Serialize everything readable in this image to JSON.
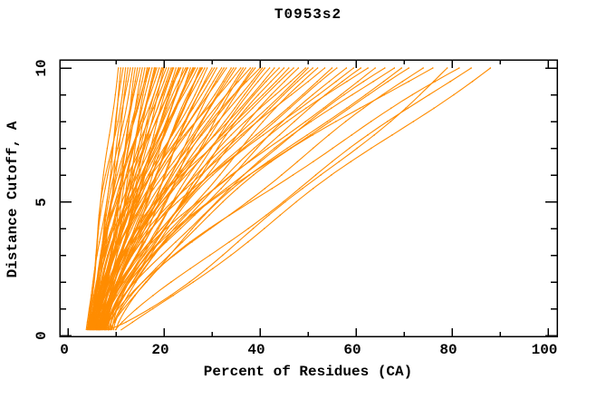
{
  "title": "T0953s2",
  "chart_data": {
    "type": "line",
    "title": "T0953s2",
    "xlabel": "Percent of Residues (CA)",
    "ylabel": "Distance Cutoff, A",
    "xlim": [
      0,
      100
    ],
    "ylim": [
      0,
      10
    ],
    "x_major_ticks": [
      0,
      20,
      40,
      60,
      80,
      100
    ],
    "x_minor_ticks": [
      10,
      30,
      50,
      70,
      90
    ],
    "y_major_ticks": [
      0,
      5,
      10
    ],
    "y_minor_ticks": [
      1,
      2,
      3,
      4,
      6,
      7,
      8,
      9
    ],
    "grid": false,
    "legend": "none",
    "background": "#ffffff",
    "axis_color": "#000000",
    "line_color": "#ff8c00",
    "cutoff_markers": {
      "start": 0.5,
      "end": 10.0,
      "step": 0.5
    },
    "envelope": {
      "x_range_at_cutoff_0.5": [
        4,
        11
      ],
      "x_range_at_cutoff_10": [
        10.5,
        88
      ],
      "dense_band_at_cutoff_10": [
        12,
        55
      ],
      "sparse_outliers_at_cutoff_10": [
        56,
        88
      ]
    },
    "curve_format": "[x_pct_at_bottom, x_pct_at_10A, shape_exponent, wobble_amp, wobble_phase] ; x(t)=xs+(xe-xs)*t^p+amp*sin(7t+ph)*sin(pi*t), t=0..1 over cutoff 0.2..10 A",
    "curves": [
      [
        3.8,
        10.5,
        1.0,
        0.4,
        0.5
      ],
      [
        4.0,
        11.0,
        0.92,
        0.6,
        2.1
      ],
      [
        4.2,
        11.5,
        1.05,
        0.5,
        4.0
      ],
      [
        4.0,
        12.0,
        1.12,
        0.8,
        1.2
      ],
      [
        4.5,
        12.5,
        0.9,
        0.5,
        3.3
      ],
      [
        4.3,
        13.0,
        1.0,
        0.7,
        5.1
      ],
      [
        4.6,
        13.5,
        1.1,
        0.6,
        0.9
      ],
      [
        4.8,
        14.0,
        0.96,
        0.9,
        2.6
      ],
      [
        5.0,
        15.0,
        1.06,
        0.7,
        4.4
      ],
      [
        5.2,
        16.0,
        1.0,
        0.8,
        5.8
      ],
      [
        4.1,
        14.5,
        1.08,
        0.5,
        1.0
      ],
      [
        4.4,
        15.5,
        0.98,
        0.6,
        2.7
      ],
      [
        4.9,
        16.8,
        1.18,
        0.7,
        4.8
      ],
      [
        5.3,
        18.2,
        1.02,
        0.8,
        0.2
      ],
      [
        4.6,
        19.8,
        1.22,
        0.9,
        3.2
      ],
      [
        5.1,
        21.8,
        1.12,
        0.8,
        5.6
      ],
      [
        5.9,
        23.2,
        1.28,
        1.0,
        1.9
      ],
      [
        6.3,
        24.8,
        1.08,
        0.9,
        4.0
      ],
      [
        5.6,
        26.2,
        1.18,
        1.0,
        6.1
      ],
      [
        6.0,
        27.8,
        1.3,
        1.1,
        2.3
      ],
      [
        4.2,
        16.5,
        1.1,
        0.9,
        0.7
      ],
      [
        5.1,
        17.0,
        1.2,
        1.1,
        2.9
      ],
      [
        6.0,
        17.5,
        1.0,
        0.8,
        4.6
      ],
      [
        4.8,
        18.0,
        1.25,
        1.2,
        1.5
      ],
      [
        5.5,
        18.5,
        1.1,
        0.9,
        3.8
      ],
      [
        6.3,
        19.0,
        1.3,
        1.0,
        5.5
      ],
      [
        4.5,
        19.5,
        1.15,
        1.3,
        0.3
      ],
      [
        5.8,
        20.0,
        1.05,
        0.8,
        2.2
      ],
      [
        6.6,
        20.5,
        1.3,
        1.1,
        4.1
      ],
      [
        5.0,
        21.0,
        1.2,
        1.0,
        5.9
      ],
      [
        4.4,
        21.5,
        1.35,
        1.2,
        1.8
      ],
      [
        5.6,
        22.0,
        1.1,
        0.9,
        3.5
      ],
      [
        6.2,
        22.5,
        1.25,
        1.3,
        0.6
      ],
      [
        4.7,
        23.0,
        1.15,
        1.0,
        2.8
      ],
      [
        5.3,
        23.5,
        1.3,
        1.1,
        4.9
      ],
      [
        6.5,
        24.0,
        1.05,
        0.9,
        1.1
      ],
      [
        4.9,
        24.5,
        1.4,
        1.2,
        3.1
      ],
      [
        5.7,
        25.0,
        1.2,
        1.0,
        5.2
      ],
      [
        6.1,
        25.5,
        1.1,
        1.3,
        0.9
      ],
      [
        5.2,
        26.0,
        1.3,
        1.1,
        2.5
      ],
      [
        4.6,
        26.5,
        1.2,
        0.9,
        4.3
      ],
      [
        5.9,
        27.0,
        1.35,
        1.2,
        6.0
      ],
      [
        6.4,
        27.5,
        1.15,
        1.0,
        1.4
      ],
      [
        5.4,
        28.0,
        1.25,
        1.3,
        3.7
      ],
      [
        5.0,
        28.5,
        1.1,
        1.1,
        5.0
      ],
      [
        5.5,
        29.0,
        1.2,
        1.4,
        0.8
      ],
      [
        6.8,
        30.0,
        1.35,
        1.2,
        2.4
      ],
      [
        5.2,
        30.5,
        1.15,
        1.5,
        4.2
      ],
      [
        7.2,
        31.0,
        1.3,
        1.3,
        6.1
      ],
      [
        5.8,
        32.0,
        1.45,
        1.4,
        1.6
      ],
      [
        6.4,
        32.5,
        1.2,
        1.2,
        3.4
      ],
      [
        7.6,
        33.0,
        1.35,
        1.5,
        5.3
      ],
      [
        5.4,
        34.0,
        1.25,
        1.3,
        0.4
      ],
      [
        6.9,
        34.5,
        1.4,
        1.4,
        2.0
      ],
      [
        7.8,
        35.0,
        1.2,
        1.2,
        4.7
      ],
      [
        5.9,
        36.0,
        1.5,
        1.5,
        6.2
      ],
      [
        6.5,
        36.5,
        1.3,
        1.3,
        1.3
      ],
      [
        7.3,
        37.0,
        1.2,
        1.4,
        3.0
      ],
      [
        6.0,
        38.0,
        1.45,
        1.2,
        4.8
      ],
      [
        6.7,
        38.5,
        1.25,
        1.5,
        0.2
      ],
      [
        7.9,
        39.0,
        1.35,
        1.3,
        2.7
      ],
      [
        6.2,
        40.0,
        1.5,
        1.4,
        4.5
      ],
      [
        7.0,
        40.5,
        1.3,
        1.2,
        6.0
      ],
      [
        7.5,
        41.0,
        1.4,
        1.5,
        1.9
      ],
      [
        6.6,
        42.0,
        1.25,
        1.3,
        3.6
      ],
      [
        6.0,
        43.0,
        1.35,
        1.6,
        0.9
      ],
      [
        7.4,
        44.0,
        1.5,
        1.4,
        2.6
      ],
      [
        6.6,
        45.0,
        1.25,
        1.7,
        4.4
      ],
      [
        8.0,
        46.0,
        1.4,
        1.5,
        6.1
      ],
      [
        6.2,
        47.0,
        1.55,
        1.6,
        1.7
      ],
      [
        7.1,
        48.0,
        1.3,
        1.4,
        3.9
      ],
      [
        8.4,
        49.5,
        1.45,
        1.7,
        5.6
      ],
      [
        6.8,
        50.0,
        1.35,
        1.5,
        0.6
      ],
      [
        7.7,
        51.0,
        1.5,
        1.6,
        2.3
      ],
      [
        8.2,
        52.0,
        1.3,
        1.4,
        4.0
      ],
      [
        7.0,
        53.5,
        1.45,
        1.7,
        5.8
      ],
      [
        8.5,
        55.0,
        1.4,
        1.5,
        1.0
      ],
      [
        6.5,
        56.0,
        1.45,
        1.8,
        2.1
      ],
      [
        7.8,
        58.0,
        1.3,
        1.6,
        4.3
      ],
      [
        8.6,
        59.5,
        1.5,
        1.7,
        0.5
      ],
      [
        7.2,
        61.0,
        1.4,
        1.8,
        2.9
      ],
      [
        8.9,
        62.5,
        1.55,
        1.6,
        5.0
      ],
      [
        7.5,
        64.0,
        1.35,
        1.7,
        1.2
      ],
      [
        9.2,
        66.0,
        1.5,
        1.8,
        3.2
      ],
      [
        8.0,
        68.0,
        1.4,
        1.6,
        5.4
      ],
      [
        8.8,
        69.5,
        1.3,
        1.8,
        0.8
      ],
      [
        9.0,
        71.0,
        1.45,
        1.9,
        2.0
      ],
      [
        7.6,
        74.0,
        1.2,
        1.7,
        4.1
      ],
      [
        9.5,
        76.0,
        1.5,
        1.8,
        6.0
      ],
      [
        8.3,
        79.0,
        0.85,
        1.6,
        1.5
      ],
      [
        10.0,
        81.5,
        1.35,
        1.9,
        3.3
      ],
      [
        9.8,
        84.0,
        1.1,
        1.7,
        5.2
      ],
      [
        11.0,
        88.0,
        1.0,
        1.8,
        0.4
      ]
    ]
  }
}
